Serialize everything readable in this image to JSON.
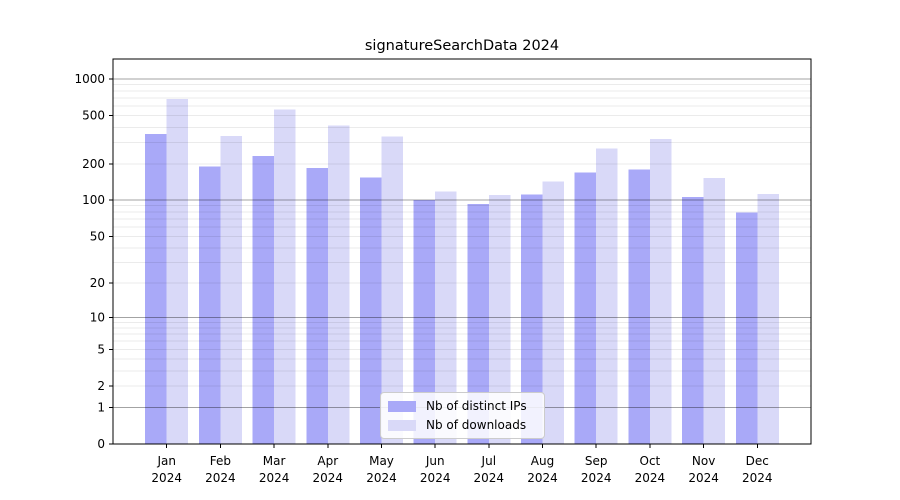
{
  "figure": {
    "title": "signatureSearchData 2024"
  },
  "chart_data": {
    "type": "bar",
    "title": "signatureSearchData 2024",
    "categories": [
      "Jan",
      "Feb",
      "Mar",
      "Apr",
      "May",
      "Jun",
      "Jul",
      "Aug",
      "Sep",
      "Oct",
      "Nov",
      "Dec"
    ],
    "category_year": "2024",
    "series": [
      {
        "name": "Nb of distinct IPs",
        "color": "#a9a9f8",
        "values": [
          352,
          190,
          232,
          184,
          154,
          100,
          93,
          111,
          170,
          180,
          106,
          79
        ]
      },
      {
        "name": "Nb of downloads",
        "color": "#d9d9f8",
        "values": [
          685,
          340,
          560,
          415,
          335,
          118,
          110,
          143,
          268,
          322,
          153,
          112
        ]
      }
    ],
    "yscale": "log10(1+v)",
    "ylim": [
      0,
      1460
    ],
    "yticks": [
      0,
      1,
      2,
      5,
      10,
      20,
      50,
      100,
      200,
      500,
      1000
    ],
    "grid_major_at": [
      1,
      10,
      100,
      1000
    ],
    "grid": true,
    "legend_position": "lower center",
    "colors": {
      "axis": "#000000",
      "grid_major": "rgba(0,0,0,0.36)",
      "grid_minor": "rgba(0,0,0,0.08)"
    }
  }
}
